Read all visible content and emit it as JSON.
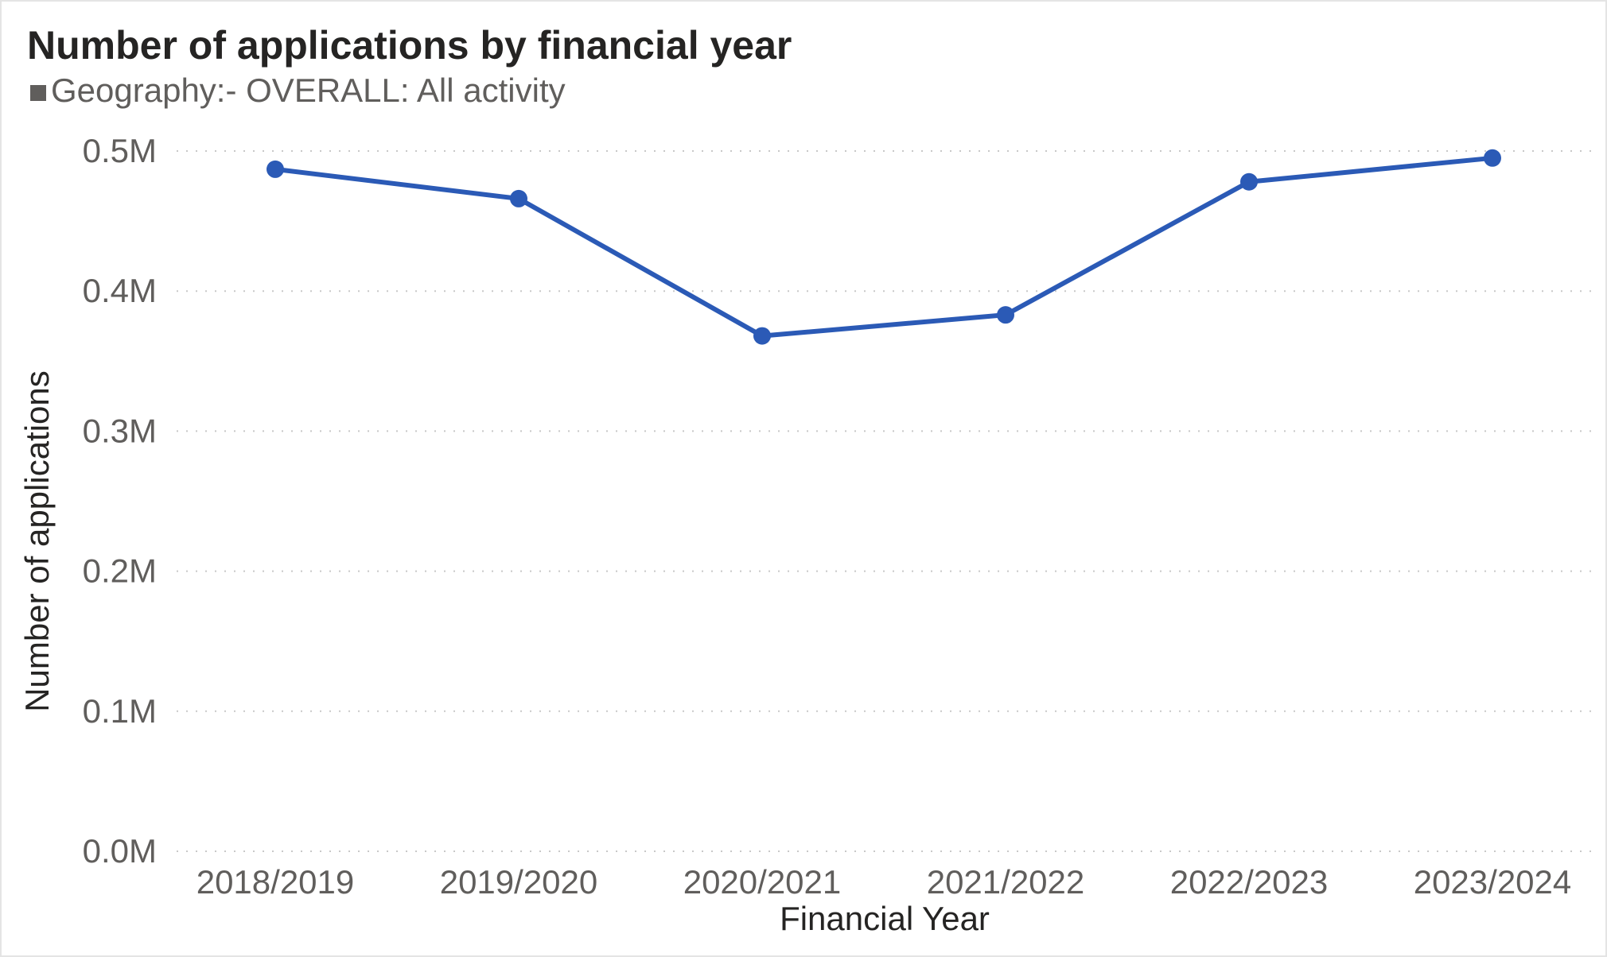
{
  "chart_data": {
    "type": "line",
    "title": "Number of applications by financial year",
    "legend": {
      "position": "top-left",
      "entries": [
        {
          "label": "Geography:- OVERALL: All activity",
          "color": "#605e5c"
        }
      ]
    },
    "xlabel": "Financial Year",
    "ylabel": "Number of applications",
    "categories": [
      "2018/2019",
      "2019/2020",
      "2020/2021",
      "2021/2022",
      "2022/2023",
      "2023/2024"
    ],
    "series": [
      {
        "values": [
          487000,
          466000,
          368000,
          383000,
          478000,
          495000
        ],
        "color": "#2b5ab6"
      }
    ],
    "ylim": [
      0,
      500000
    ],
    "yticks": [
      0,
      100000,
      200000,
      300000,
      400000,
      500000
    ],
    "ytick_labels": [
      "0.0M",
      "0.1M",
      "0.2M",
      "0.3M",
      "0.4M",
      "0.5M"
    ],
    "grid": true,
    "grid_style": "dotted"
  }
}
